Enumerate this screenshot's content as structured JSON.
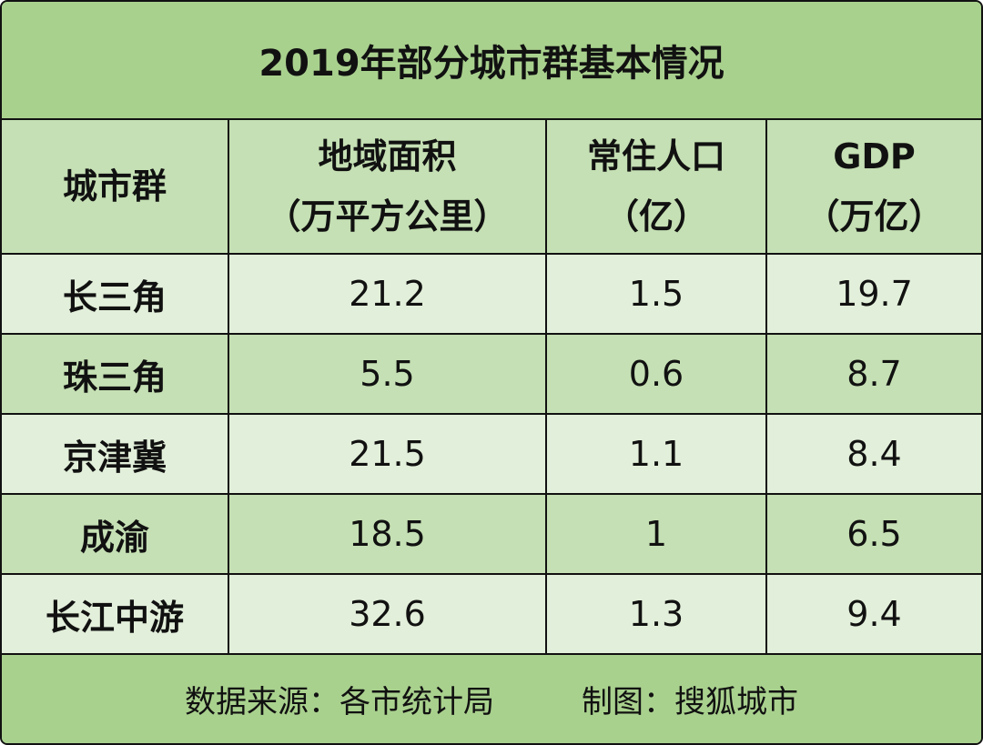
{
  "title": "2019年部分城市群基本情况",
  "table": {
    "header": [
      [
        "城市群"
      ],
      [
        "地域面积",
        "（万平方公里）"
      ],
      [
        "常住人口",
        "（亿）"
      ],
      [
        "GDP",
        "（万亿）"
      ]
    ],
    "rows": [
      [
        "长三角",
        21.2,
        1.5,
        19.7
      ],
      [
        "珠三角",
        5.5,
        0.6,
        8.7
      ],
      [
        "京津冀",
        21.5,
        1.1,
        8.4
      ],
      [
        "成渝",
        18.5,
        1,
        6.5
      ],
      [
        "长江中游",
        32.6,
        1.3,
        9.4
      ]
    ]
  },
  "footer": {
    "source": "数据来源：各市统计局",
    "credit": "制图：搜狐城市"
  }
}
